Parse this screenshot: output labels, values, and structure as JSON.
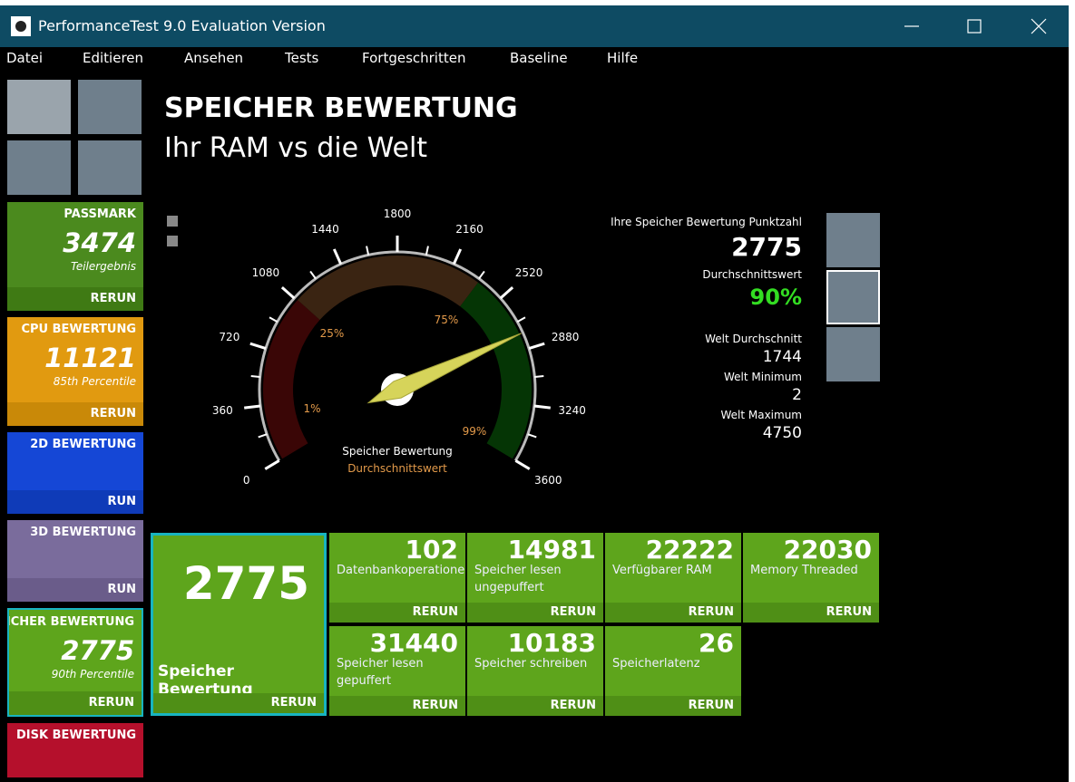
{
  "window": {
    "title": "PerformanceTest 9.0 Evaluation Version"
  },
  "menu": [
    "Datei",
    "Editieren",
    "Ansehen",
    "Tests",
    "Fortgeschritten",
    "Baseline",
    "Hilfe"
  ],
  "sidebar": [
    {
      "label": "PASSMARK",
      "value": "3474",
      "sub": "Teilergebnis",
      "action": "RERUN"
    },
    {
      "label": "CPU BEWERTUNG",
      "value": "11121",
      "sub": "85th Percentile",
      "action": "RERUN"
    },
    {
      "label": "2D BEWERTUNG",
      "action": "RUN"
    },
    {
      "label": "3D BEWERTUNG",
      "action": "RUN"
    },
    {
      "label": "SPEICHER BEWERTUNG",
      "value": "2775",
      "sub": "90th Percentile",
      "action": "RERUN"
    },
    {
      "label": "DISK BEWERTUNG"
    }
  ],
  "header": {
    "title": "SPEICHER BEWERTUNG",
    "subtitle": "Ihr RAM vs die Welt"
  },
  "gauge": {
    "range": [
      0,
      3600
    ],
    "ticks": [
      0,
      360,
      720,
      1080,
      1440,
      1800,
      2160,
      2520,
      2880,
      3240,
      3600
    ],
    "percent_labels": [
      "1%",
      "25%",
      "75%",
      "99%"
    ],
    "caption": "Speicher Bewertung",
    "subcaption": "Durchschnittswert"
  },
  "stats": {
    "score_label": "Ihre Speicher Bewertung Punktzahl",
    "score": 2775,
    "avg_label": "Durchschnittswert",
    "avg": "90%",
    "world_avg_label": "Welt Durchschnitt",
    "world_avg": 1744,
    "world_min_label": "Welt Minimum",
    "world_min": 2,
    "world_max_label": "Welt Maximum",
    "world_max": 4750
  },
  "tiles": [
    {
      "value": 2775,
      "label": "Speicher Bewertung",
      "action": "RERUN"
    },
    {
      "value": 102,
      "label": "Datenbankoperationen",
      "action": "RERUN"
    },
    {
      "value": 14981,
      "label": "Speicher lesen ungepuffert",
      "action": "RERUN"
    },
    {
      "value": 22222,
      "label": "Verfügbarer RAM",
      "action": "RERUN"
    },
    {
      "value": 22030,
      "label": "Memory Threaded",
      "action": "RERUN"
    },
    {
      "value": 31440,
      "label": "Speicher lesen gepuffert",
      "action": "RERUN"
    },
    {
      "value": 10183,
      "label": "Speicher schreiben",
      "action": "RERUN"
    },
    {
      "value": 26,
      "label": "Speicherlatenz",
      "action": "RERUN"
    }
  ]
}
